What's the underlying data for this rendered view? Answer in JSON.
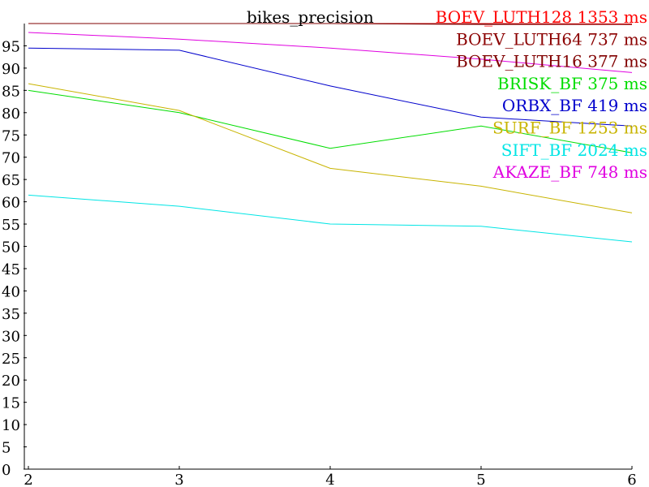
{
  "chart_data": {
    "type": "line",
    "title": "bikes_precision",
    "xlabel": "",
    "ylabel": "",
    "x": [
      2,
      3,
      4,
      5,
      6
    ],
    "xlim": [
      2,
      6
    ],
    "ylim": [
      0,
      100
    ],
    "x_ticks": [
      "2",
      "3",
      "4",
      "5",
      "6"
    ],
    "y_ticks": [
      "0",
      "5",
      "10",
      "15",
      "20",
      "25",
      "30",
      "35",
      "40",
      "45",
      "50",
      "55",
      "60",
      "65",
      "70",
      "75",
      "80",
      "85",
      "90",
      "95"
    ],
    "grid": false,
    "legend_placement": "top-right",
    "series": [
      {
        "name": "BOEV_LUTH128 1353 ms",
        "color": "#ff0000",
        "values": [
          100,
          100,
          100,
          100,
          99.9
        ]
      },
      {
        "name": "BOEV_LUTH64 737 ms",
        "color": "#8b0000",
        "values": [
          100,
          100,
          100,
          99.8,
          99.8
        ]
      },
      {
        "name": "BOEV_LUTH16 377 ms",
        "color": "#800000",
        "values": [
          100,
          100,
          100,
          99.9,
          99.8
        ]
      },
      {
        "name": "BRISK_BF 375 ms",
        "color": "#00dd00",
        "values": [
          85.0,
          80.0,
          72.0,
          77.0,
          71.0
        ]
      },
      {
        "name": "ORBX_BF 419 ms",
        "color": "#0000cc",
        "values": [
          94.5,
          94.0,
          86.0,
          79.0,
          77.0
        ]
      },
      {
        "name": "SURF_BF 1253 ms",
        "color": "#c8b400",
        "values": [
          86.5,
          80.5,
          67.5,
          63.5,
          57.5
        ]
      },
      {
        "name": "SIFT_BF 2024 ms",
        "color": "#00e5e5",
        "values": [
          61.5,
          59.0,
          55.0,
          54.5,
          51.0
        ]
      },
      {
        "name": "AKAZE_BF 748 ms",
        "color": "#e000e0",
        "values": [
          98.0,
          96.5,
          94.5,
          92.0,
          89.0
        ]
      }
    ]
  }
}
